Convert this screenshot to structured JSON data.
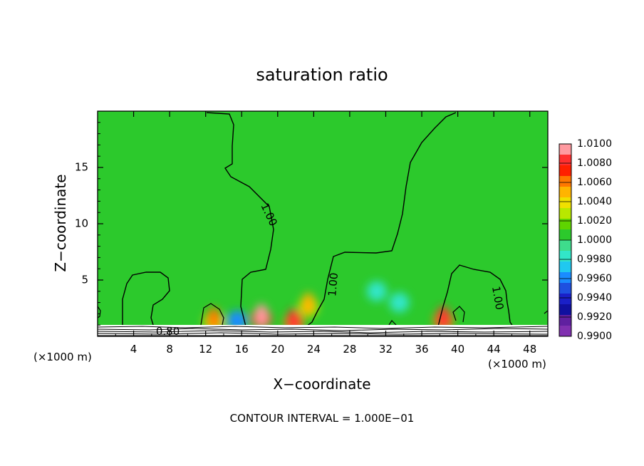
{
  "chart_data": {
    "type": "heatmap",
    "title": "saturation ratio",
    "xlabel": "X−coordinate",
    "ylabel": "Z−coordinate",
    "x_unit_left": "(×1000 m)",
    "x_unit_right": "(×1000 m)",
    "footer": "CONTOUR INTERVAL =  1.000E−01",
    "xlim": [
      0,
      50
    ],
    "ylim": [
      0,
      20
    ],
    "x_ticks": [
      4,
      8,
      12,
      16,
      20,
      24,
      28,
      32,
      36,
      40,
      44,
      48
    ],
    "x_tick_labels": [
      "4",
      "8",
      "12",
      "16",
      "20",
      "24",
      "28",
      "32",
      "36",
      "40",
      "44",
      "48"
    ],
    "y_ticks": [
      5,
      10,
      15
    ],
    "y_tick_labels": [
      "5",
      "10",
      "15"
    ],
    "background_value": 1.0005,
    "colorbar": {
      "levels": [
        "1.0100",
        "1.0080",
        "1.0060",
        "1.0040",
        "1.0020",
        "1.0000",
        "0.9980",
        "0.9960",
        "0.9940",
        "0.9920",
        "0.9900"
      ],
      "colors": [
        "#ff9aa0",
        "#ff3030",
        "#ff2000",
        "#ff7800",
        "#ffb400",
        "#f0e000",
        "#b8e800",
        "#5fd400",
        "#2cc92c",
        "#3edc8c",
        "#32e6c8",
        "#20c8f0",
        "#1a8cff",
        "#1e50e0",
        "#1a20c8",
        "#1010a0",
        "#6020a0",
        "#8030b0"
      ]
    },
    "contour_labels": [
      {
        "text": "1.00",
        "x": 19.0,
        "z": 10.8,
        "angle": 65
      },
      {
        "text": "1.00",
        "x": 26.2,
        "z": 4.6,
        "angle": -85
      },
      {
        "text": "1.00",
        "x": 44.4,
        "z": 3.4,
        "angle": 80
      },
      {
        "text": "0.80",
        "x": 7.8,
        "z": 0.4,
        "angle": 0
      }
    ],
    "hotspots": [
      {
        "x": 18.2,
        "z": 1.6,
        "value": 1.007
      },
      {
        "x": 21.8,
        "z": 1.2,
        "value": 1.006
      },
      {
        "x": 38.4,
        "z": 1.4,
        "value": 1.006
      },
      {
        "x": 12.9,
        "z": 1.3,
        "value": 1.004
      },
      {
        "x": 23.4,
        "z": 2.6,
        "value": 1.003
      },
      {
        "x": 15.5,
        "z": 1.4,
        "value": 0.996
      },
      {
        "x": 31.0,
        "z": 4.0,
        "value": 0.998
      },
      {
        "x": 33.5,
        "z": 3.0,
        "value": 0.998
      }
    ]
  }
}
